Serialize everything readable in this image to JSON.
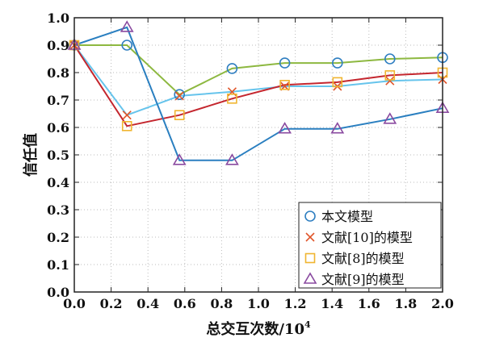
{
  "chart_data": {
    "type": "line",
    "title": "",
    "xlabel": "总交互次数/10",
    "xlabel_exponent": "4",
    "ylabel": "信任值",
    "xlim": [
      0,
      2.0
    ],
    "ylim": [
      0,
      1.0
    ],
    "grid": true,
    "legend_position": "bottom-right",
    "x_ticks": [
      "0.0",
      "0.2",
      "0.4",
      "0.6",
      "0.8",
      "1.0",
      "1.2",
      "1.4",
      "1.6",
      "1.8",
      "2.0"
    ],
    "y_ticks": [
      "0.0",
      "0.1",
      "0.2",
      "0.3",
      "0.4",
      "0.5",
      "0.6",
      "0.7",
      "0.8",
      "0.9",
      "1.0"
    ],
    "x": [
      0,
      0.286,
      0.571,
      0.857,
      1.143,
      1.429,
      1.714,
      2.0
    ],
    "series": [
      {
        "name": "本文模型",
        "marker": "circle",
        "line_color": "#8db840",
        "marker_color": "#2f7fc1",
        "values": [
          0.9,
          0.9,
          0.72,
          0.815,
          0.835,
          0.835,
          0.85,
          0.855
        ]
      },
      {
        "name": "文献[10]的模型",
        "marker": "x",
        "line_color": "#66c4ec",
        "marker_color": "#e0552a",
        "values": [
          0.9,
          0.645,
          0.715,
          0.73,
          0.75,
          0.75,
          0.77,
          0.775
        ]
      },
      {
        "name": "文献[8]的模型",
        "marker": "square",
        "line_color": "#c4262e",
        "marker_color": "#f0b530",
        "values": [
          0.9,
          0.605,
          0.645,
          0.705,
          0.755,
          0.765,
          0.79,
          0.8
        ]
      },
      {
        "name": "文献[9]的模型",
        "marker": "triangle",
        "line_color": "#2a7fc0",
        "marker_color": "#8a4aa0",
        "values": [
          0.9,
          0.965,
          0.48,
          0.48,
          0.595,
          0.595,
          0.63,
          0.67
        ]
      }
    ]
  }
}
